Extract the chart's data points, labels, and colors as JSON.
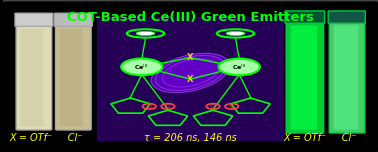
{
  "background_color": "#000000",
  "title": "COT-Based Ce(III) Green Emitters",
  "title_color": "#00ff00",
  "title_fontsize": 9.5,
  "label_left": "X = OTf⁻     Cl⁻",
  "label_center": "τ = 206 ns, 146 ns",
  "label_right": "X = OTf⁻     Cl⁻",
  "label_color": "#ffff00",
  "label_fontsize": 7.0,
  "fig_width": 3.78,
  "fig_height": 1.52,
  "dpi": 100,
  "molecule_green": "#00ff00",
  "ce_color": "#aaffaa",
  "x_marker_color": "#ffcc00",
  "o_marker_color": "#ff4444"
}
